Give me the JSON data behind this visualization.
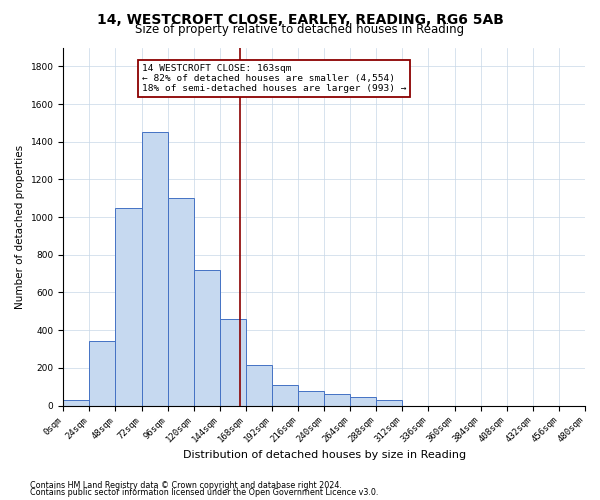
{
  "title1": "14, WESTCROFT CLOSE, EARLEY, READING, RG6 5AB",
  "title2": "Size of property relative to detached houses in Reading",
  "xlabel": "Distribution of detached houses by size in Reading",
  "ylabel": "Number of detached properties",
  "bin_edges": [
    0,
    24,
    48,
    72,
    96,
    120,
    144,
    168,
    192,
    216,
    240,
    264,
    288,
    312,
    336,
    360,
    384,
    408,
    432,
    456,
    480
  ],
  "bar_heights": [
    30,
    340,
    1050,
    1450,
    1100,
    720,
    460,
    215,
    110,
    75,
    60,
    45,
    30,
    0,
    0,
    0,
    0,
    0,
    0,
    0
  ],
  "bar_color": "#c6d9f0",
  "bar_edge_color": "#4472c4",
  "property_size": 163,
  "annotation_text1": "14 WESTCROFT CLOSE: 163sqm",
  "annotation_text2": "← 82% of detached houses are smaller (4,554)",
  "annotation_text3": "18% of semi-detached houses are larger (993) →",
  "vline_color": "#8b0000",
  "annotation_box_edge": "#8b0000",
  "footnote1": "Contains HM Land Registry data © Crown copyright and database right 2024.",
  "footnote2": "Contains public sector information licensed under the Open Government Licence v3.0.",
  "ylim": [
    0,
    1900
  ],
  "yticks": [
    0,
    200,
    400,
    600,
    800,
    1000,
    1200,
    1400,
    1600,
    1800
  ],
  "background_color": "#ffffff",
  "grid_color": "#c8d8e8",
  "title1_fontsize": 10,
  "title2_fontsize": 8.5,
  "xlabel_fontsize": 8,
  "ylabel_fontsize": 7.5,
  "tick_fontsize": 6.5,
  "annotation_fontsize": 6.8,
  "footnote_fontsize": 5.8
}
